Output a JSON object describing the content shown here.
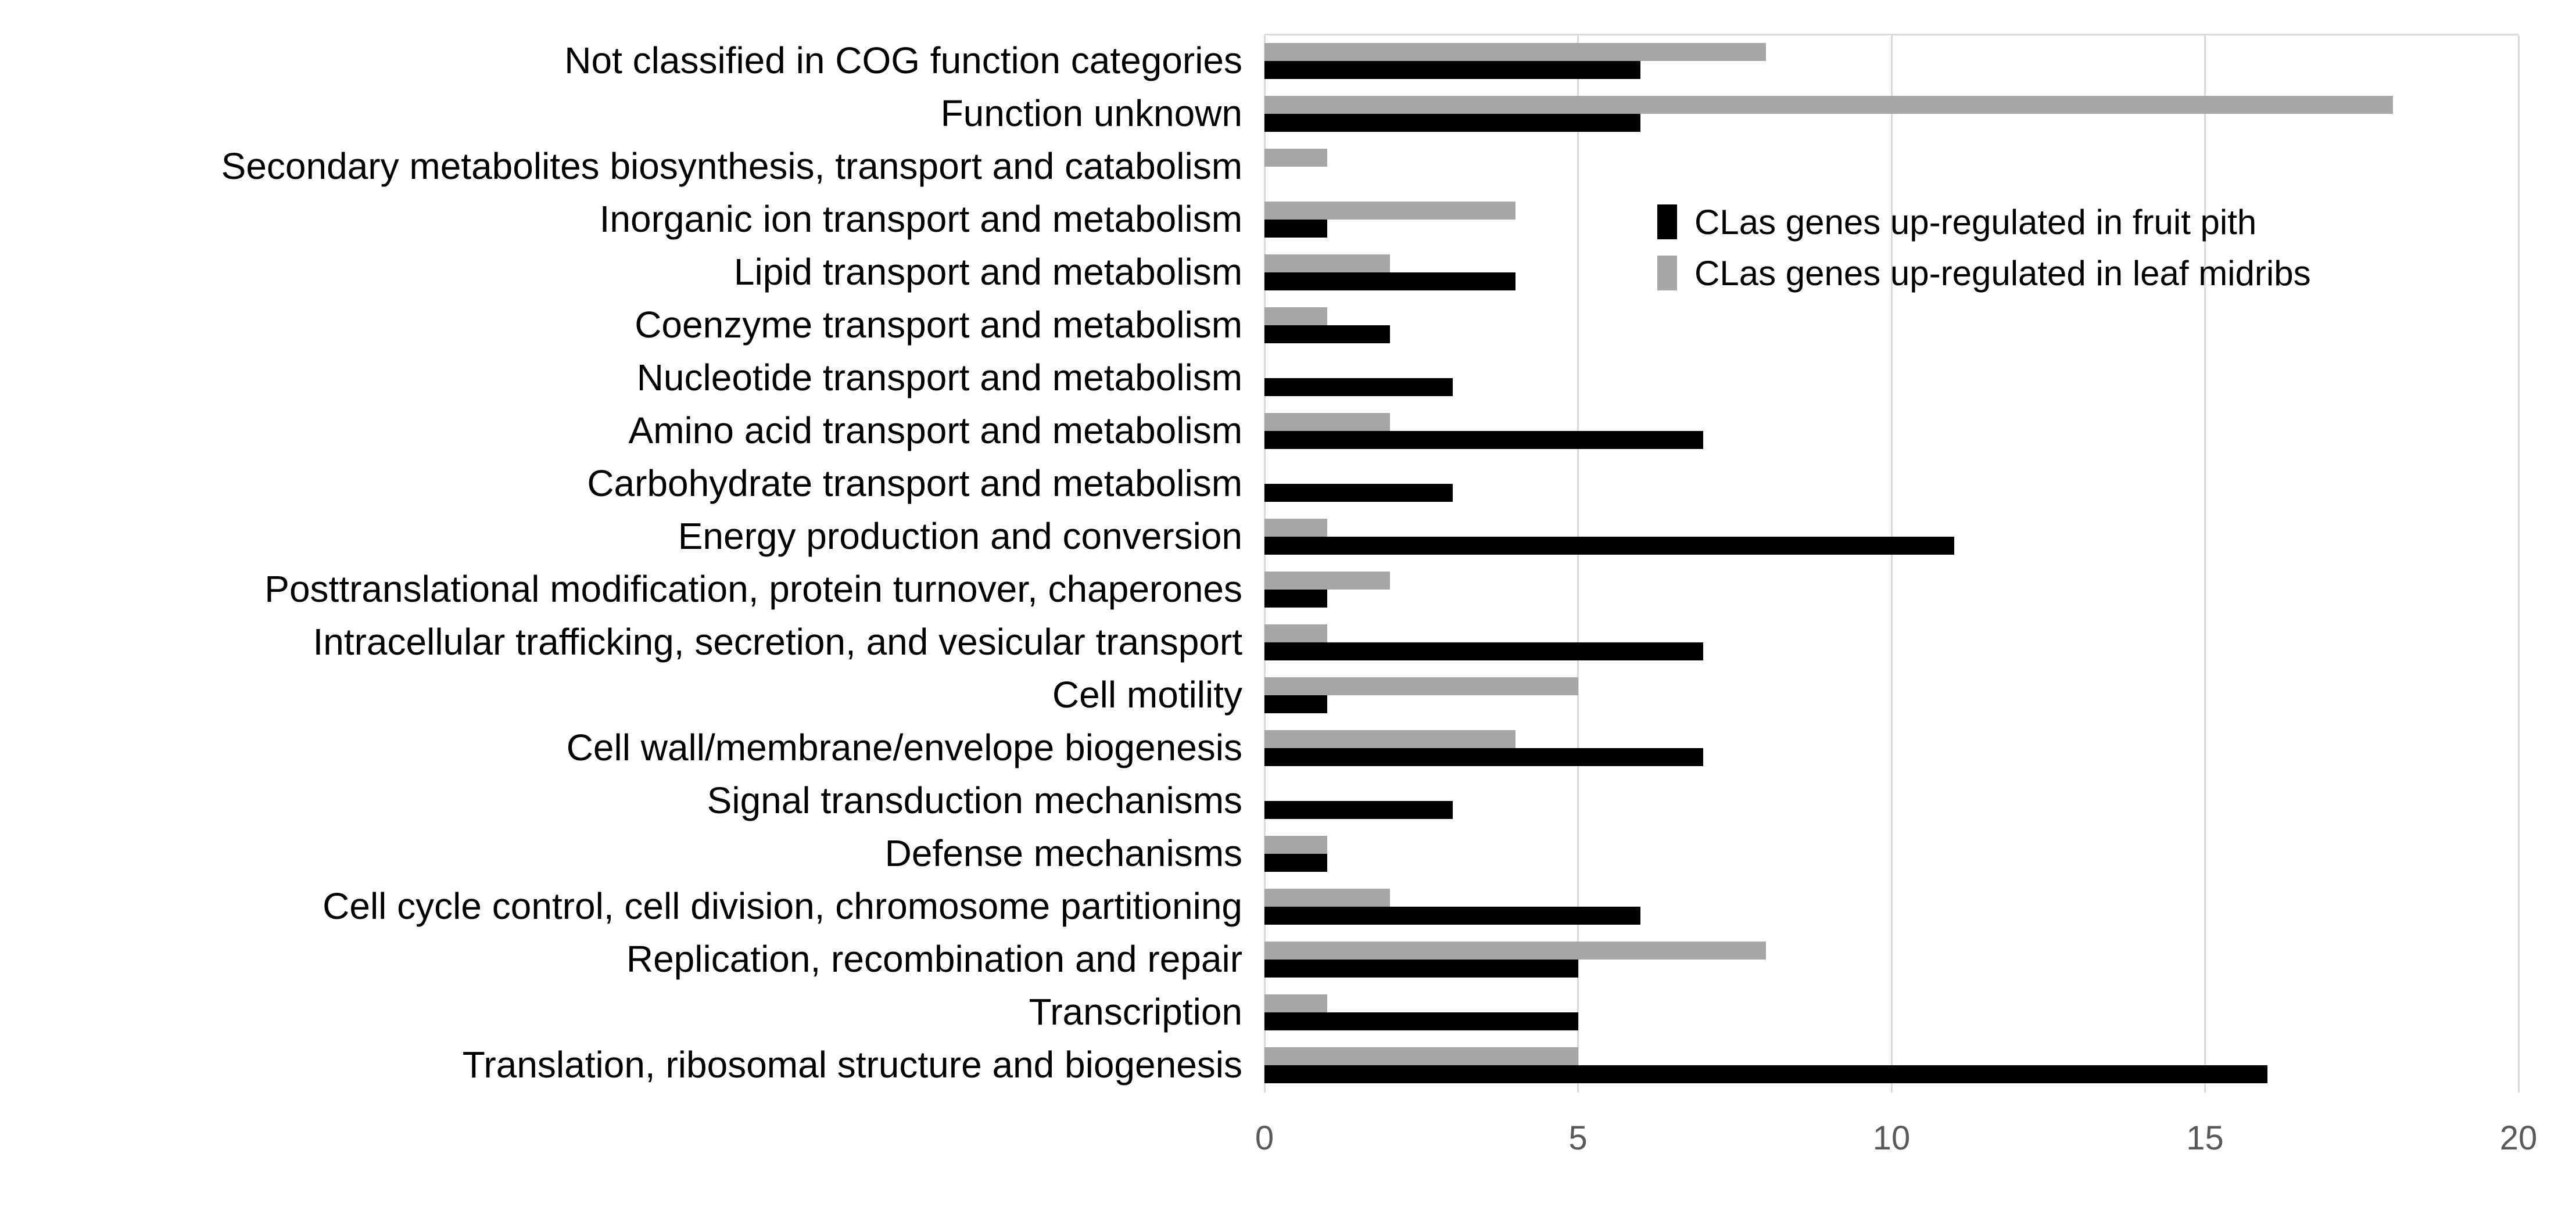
{
  "chart_data": {
    "type": "bar",
    "orientation": "horizontal",
    "title": "",
    "xlabel": "",
    "ylabel": "",
    "xlim": [
      0,
      20
    ],
    "xticks": [
      0,
      5,
      10,
      15,
      20
    ],
    "grid": true,
    "legend_position": "upper-right-inside",
    "categories": [
      "Not classified in COG function categories",
      "Function unknown",
      "Secondary metabolites biosynthesis, transport and catabolism",
      "Inorganic ion transport and metabolism",
      "Lipid transport and metabolism",
      "Coenzyme transport and metabolism",
      "Nucleotide transport and metabolism",
      "Amino acid transport and metabolism",
      "Carbohydrate transport and metabolism",
      "Energy production and conversion",
      "Posttranslational modification, protein turnover, chaperones",
      "Intracellular trafficking, secretion, and vesicular transport",
      "Cell motility",
      "Cell wall/membrane/envelope biogenesis",
      "Signal transduction mechanisms",
      "Defense mechanisms",
      "Cell cycle control, cell division, chromosome partitioning",
      "Replication, recombination and repair",
      "Transcription",
      "Translation, ribosomal structure and biogenesis"
    ],
    "series": [
      {
        "name": "CLas genes up-regulated in fruit pith",
        "color": "#000000",
        "values": [
          6,
          6,
          0,
          1,
          4,
          2,
          3,
          7,
          3,
          11,
          1,
          7,
          1,
          7,
          3,
          1,
          6,
          5,
          5,
          16
        ]
      },
      {
        "name": "CLas genes up-regulated in leaf midribs",
        "color": "#a6a6a6",
        "values": [
          8,
          18,
          1,
          4,
          2,
          1,
          0,
          2,
          0,
          1,
          2,
          1,
          5,
          4,
          0,
          1,
          2,
          8,
          1,
          5
        ]
      }
    ]
  },
  "colors": {
    "background": "#ffffff",
    "gridline": "#d9d9d9",
    "tick_text": "#595959",
    "category_text": "#000000",
    "legend_text": "#000000"
  }
}
